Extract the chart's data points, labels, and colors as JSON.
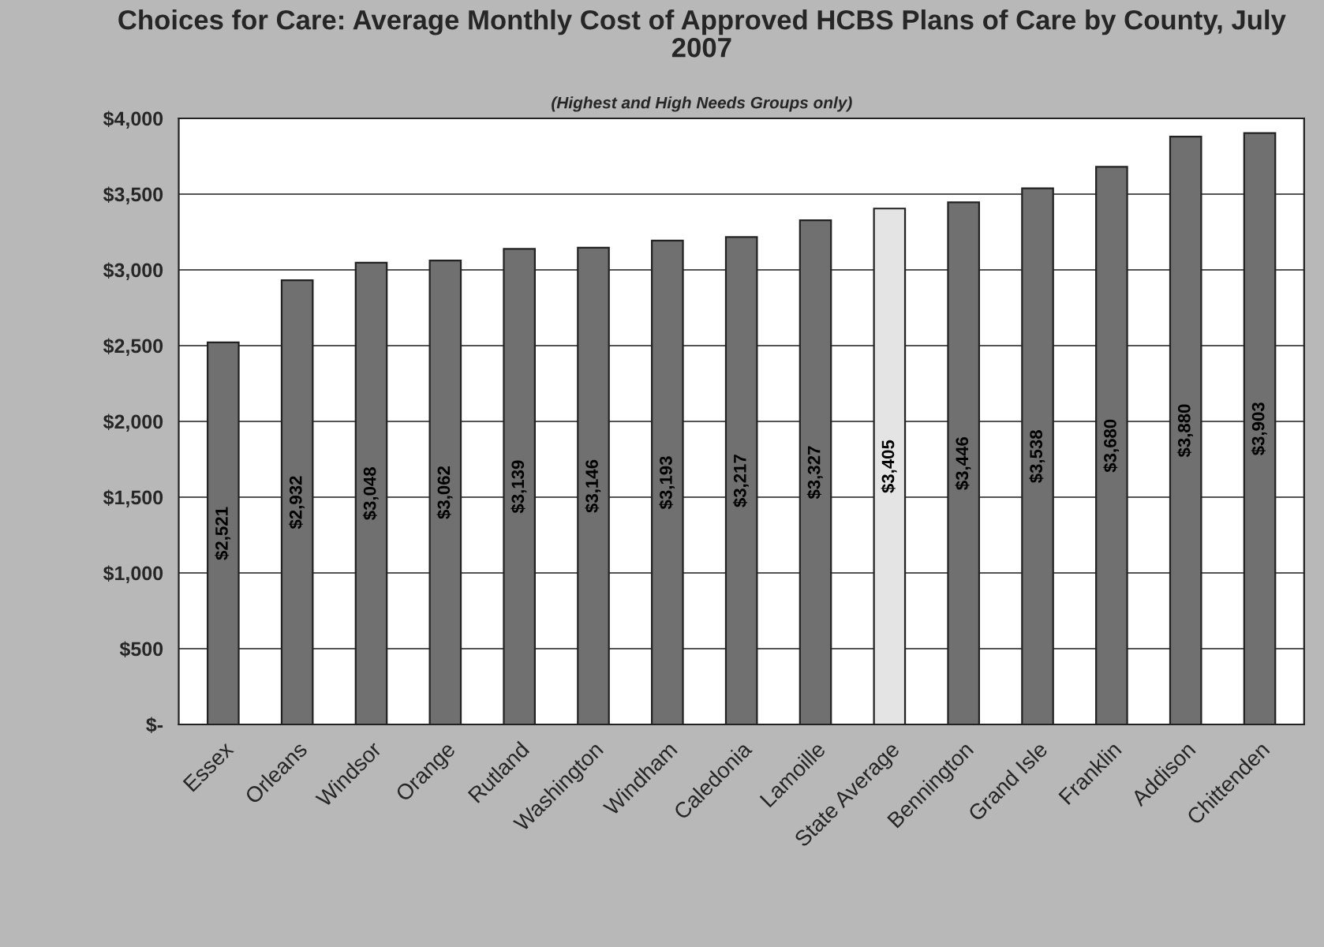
{
  "chart_data": {
    "type": "bar",
    "title": "Choices for Care: Average Monthly Cost of Approved HCBS Plans of Care by County, July 2007",
    "subtitle": "(Highest and High Needs Groups only)",
    "categories": [
      "Essex",
      "Orleans",
      "Windsor",
      "Orange",
      "Rutland",
      "Washington",
      "Windham",
      "Caledonia",
      "Lamoille",
      "State Average",
      "Bennington",
      "Grand Isle",
      "Franklin",
      "Addison",
      "Chittenden"
    ],
    "values": [
      2521,
      2932,
      3048,
      3062,
      3139,
      3146,
      3193,
      3217,
      3327,
      3405,
      3446,
      3538,
      3680,
      3880,
      3903
    ],
    "value_labels": [
      "$2,521",
      "$2,932",
      "$3,048",
      "$3,062",
      "$3,139",
      "$3,146",
      "$3,193",
      "$3,217",
      "$3,327",
      "$3,405",
      "$3,446",
      "$3,538",
      "$3,680",
      "$3,880",
      "$3,903"
    ],
    "colors": [
      "#707070",
      "#707070",
      "#707070",
      "#707070",
      "#707070",
      "#707070",
      "#707070",
      "#707070",
      "#707070",
      "#e4e4e4",
      "#707070",
      "#707070",
      "#707070",
      "#707070",
      "#707070"
    ],
    "ylim": [
      0,
      4000
    ],
    "yticks": [
      {
        "value": 0,
        "label": "$-"
      },
      {
        "value": 500,
        "label": "$500"
      },
      {
        "value": 1000,
        "label": "$1,000"
      },
      {
        "value": 1500,
        "label": "$1,500"
      },
      {
        "value": 2000,
        "label": "$2,000"
      },
      {
        "value": 2500,
        "label": "$2,500"
      },
      {
        "value": 3000,
        "label": "$3,000"
      },
      {
        "value": 3500,
        "label": "$3,500"
      },
      {
        "value": 4000,
        "label": "$4,000"
      }
    ],
    "grid": "y"
  }
}
